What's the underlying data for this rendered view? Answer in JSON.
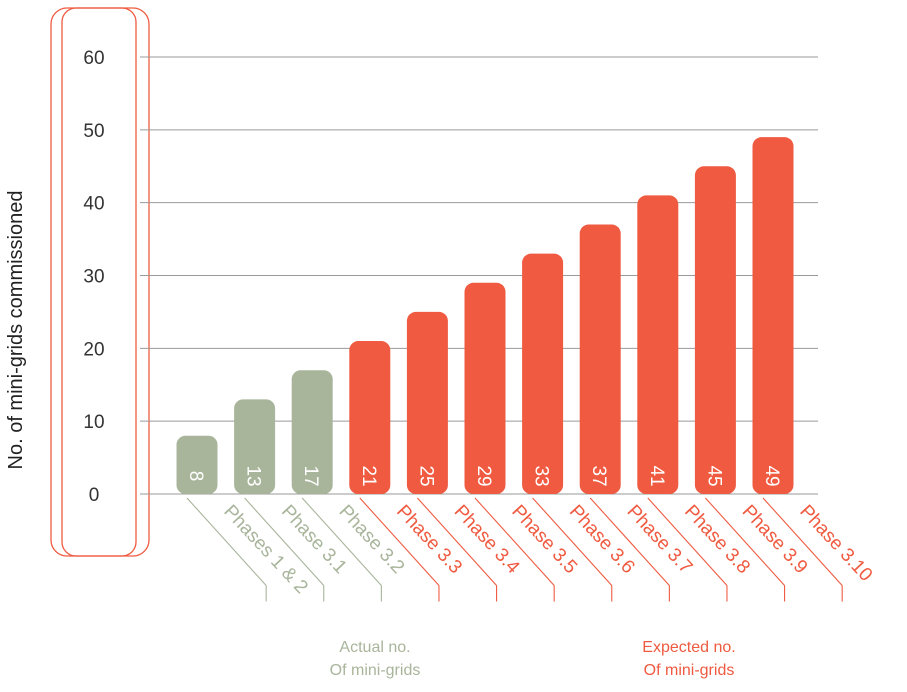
{
  "chart_data": {
    "type": "bar",
    "ylabel": "No. of mini-grids commissioned",
    "ylim": [
      0,
      60
    ],
    "yticks": [
      0,
      10,
      20,
      30,
      40,
      50,
      60
    ],
    "grid": true,
    "categories": [
      "Phases 1 & 2",
      "Phase 3.1",
      "Phase 3.2",
      "Phase 3.3",
      "Phase 3.4",
      "Phase 3.5",
      "Phase 3.6",
      "Phase 3.7",
      "Phase 3.8",
      "Phase 3.9",
      "Phase 3.10"
    ],
    "values": [
      8,
      13,
      17,
      21,
      25,
      29,
      33,
      37,
      41,
      45,
      49
    ],
    "value_labels": [
      "8",
      "13",
      "17",
      "21",
      "25",
      "29",
      "33",
      "37",
      "41",
      "45",
      "49"
    ],
    "bar_group": [
      "actual",
      "actual",
      "actual",
      "expected",
      "expected",
      "expected",
      "expected",
      "expected",
      "expected",
      "expected",
      "expected"
    ],
    "colors": {
      "actual": "#a8b59b",
      "expected": "#ef5a40",
      "grid": "#9a9a9a"
    },
    "annotations": [
      {
        "group": "actual",
        "lines": [
          "Actual no.",
          "Of mini-grids"
        ]
      },
      {
        "group": "expected",
        "lines": [
          "Expected no.",
          "Of mini-grids"
        ]
      }
    ]
  }
}
